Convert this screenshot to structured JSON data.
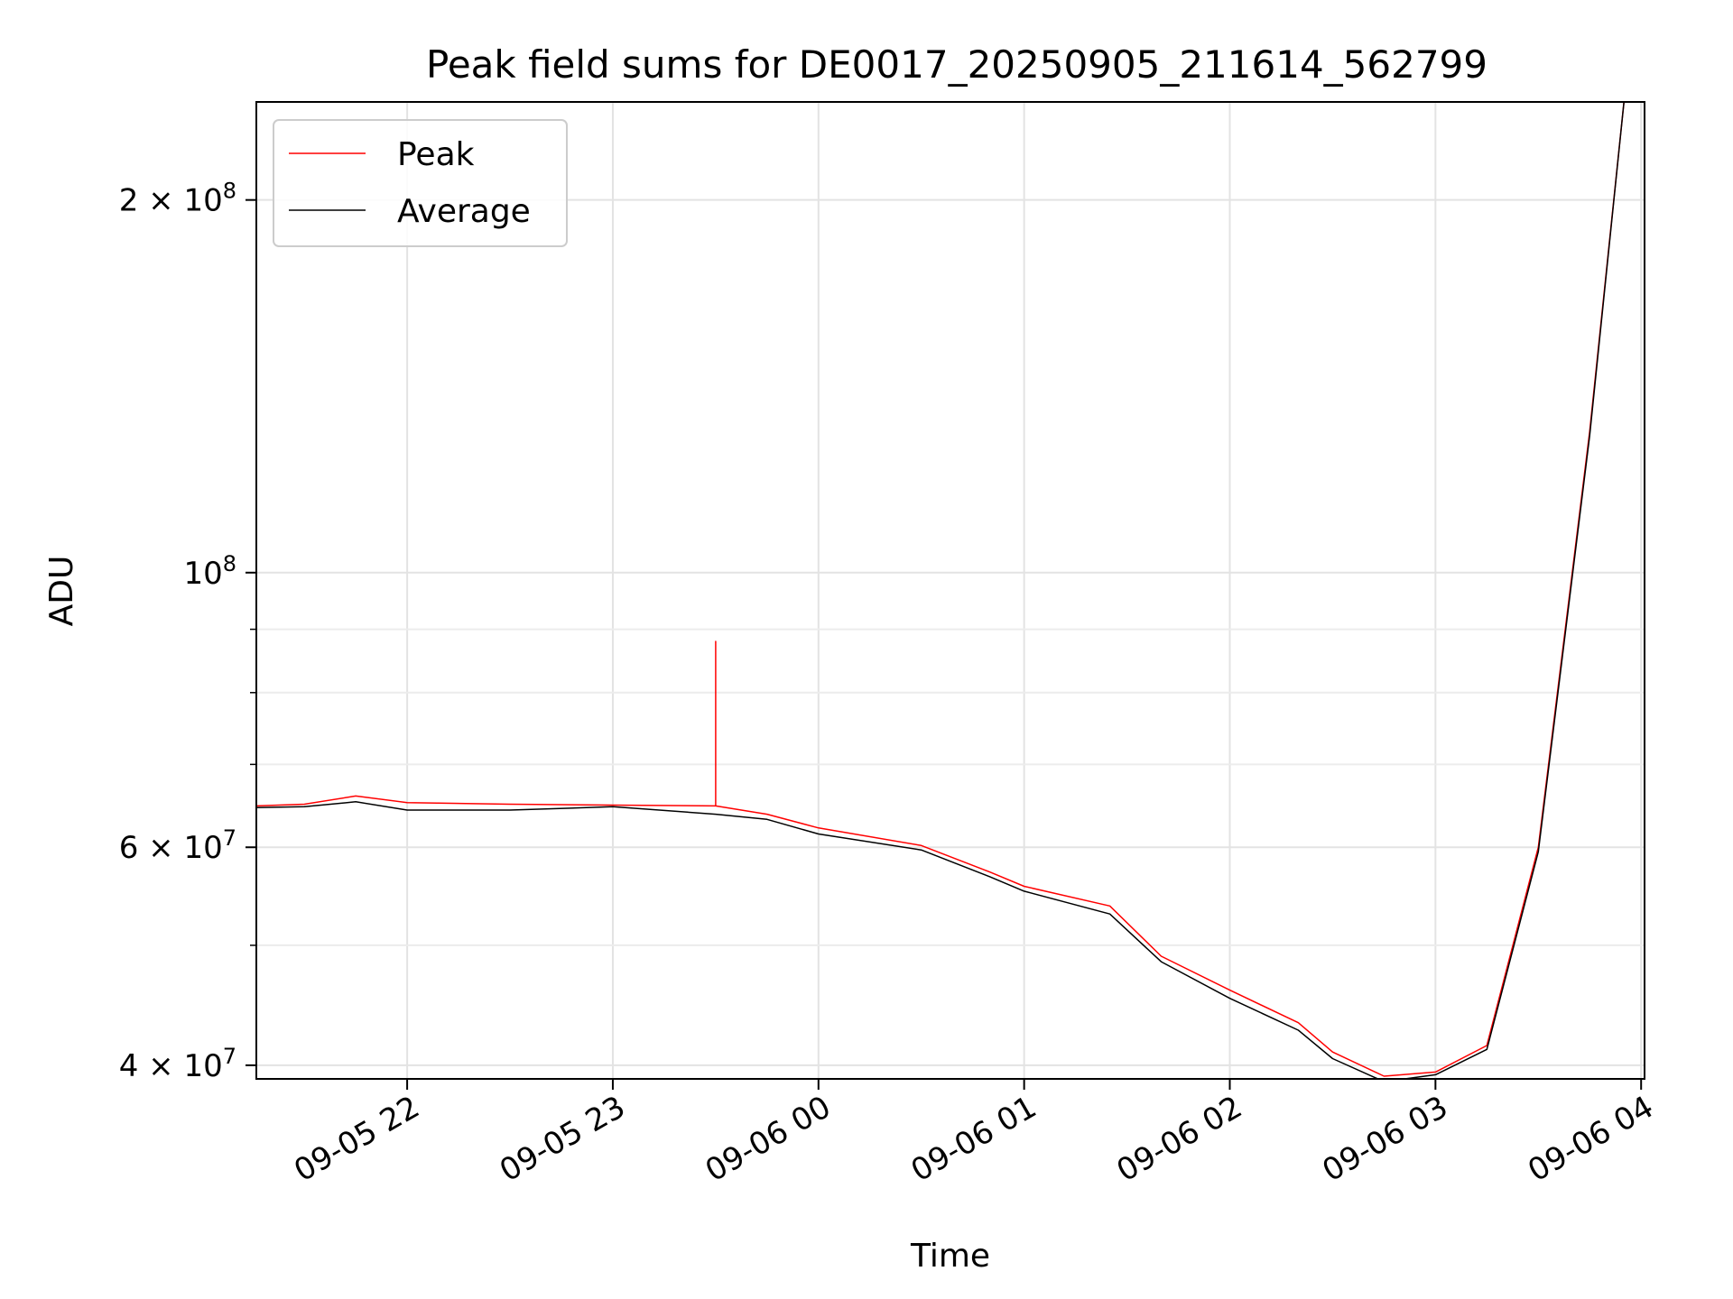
{
  "chart_data": {
    "type": "line",
    "title": "Peak field sums for DE0017_20250905_211614_562799",
    "xlabel": "Time",
    "ylabel": "ADU",
    "x_scale": "time",
    "y_scale": "log",
    "xlim": [
      "2025-09-05 21:16",
      "2025-09-06 04:01"
    ],
    "ylim": [
      39000000,
      240000000
    ],
    "grid": true,
    "legend_position": "top-left",
    "x_ticks": [
      {
        "value": "2025-09-05 22:00",
        "label": "09-05 22"
      },
      {
        "value": "2025-09-05 23:00",
        "label": "09-05 23"
      },
      {
        "value": "2025-09-06 00:00",
        "label": "09-06 00"
      },
      {
        "value": "2025-09-06 01:00",
        "label": "09-06 01"
      },
      {
        "value": "2025-09-06 02:00",
        "label": "09-06 02"
      },
      {
        "value": "2025-09-06 03:00",
        "label": "09-06 03"
      },
      {
        "value": "2025-09-06 04:00",
        "label": "09-06 04"
      }
    ],
    "y_major_ticks": [
      {
        "value": 40000000,
        "mantissa": "4 × 10",
        "exp": "7"
      },
      {
        "value": 60000000,
        "mantissa": "6 × 10",
        "exp": "7"
      },
      {
        "value": 100000000,
        "mantissa": "10",
        "exp": "8"
      },
      {
        "value": 200000000,
        "mantissa": "2 × 10",
        "exp": "8"
      }
    ],
    "y_minor_ticks": [
      50000000,
      70000000,
      80000000,
      90000000
    ],
    "series": [
      {
        "name": "Peak",
        "color": "#ff0000",
        "points": [
          [
            "2025-09-05 21:16",
            64800000
          ],
          [
            "2025-09-05 21:30",
            65000000
          ],
          [
            "2025-09-05 21:45",
            66000000
          ],
          [
            "2025-09-05 22:00",
            65200000
          ],
          [
            "2025-09-05 22:30",
            65000000
          ],
          [
            "2025-09-05 23:00",
            64900000
          ],
          [
            "2025-09-05 23:30",
            64800000
          ],
          [
            "2025-09-05 23:30",
            88000000
          ],
          [
            "2025-09-05 23:30",
            64800000
          ],
          [
            "2025-09-05 23:45",
            63800000
          ],
          [
            "2025-09-06 00:00",
            62200000
          ],
          [
            "2025-09-06 00:30",
            60200000
          ],
          [
            "2025-09-06 00:50",
            57300000
          ],
          [
            "2025-09-06 01:00",
            55800000
          ],
          [
            "2025-09-06 01:25",
            53800000
          ],
          [
            "2025-09-06 01:40",
            49000000
          ],
          [
            "2025-09-06 02:00",
            46000000
          ],
          [
            "2025-09-06 02:20",
            43300000
          ],
          [
            "2025-09-06 02:30",
            41000000
          ],
          [
            "2025-09-06 02:45",
            39200000
          ],
          [
            "2025-09-06 03:00",
            39500000
          ],
          [
            "2025-09-06 03:15",
            41500000
          ],
          [
            "2025-09-06 03:30",
            60000000
          ],
          [
            "2025-09-06 03:45",
            130000000
          ],
          [
            "2025-09-06 03:55",
            240000000
          ]
        ]
      },
      {
        "name": "Average",
        "color": "#000000",
        "points": [
          [
            "2025-09-05 21:16",
            64600000
          ],
          [
            "2025-09-05 21:30",
            64700000
          ],
          [
            "2025-09-05 21:45",
            65300000
          ],
          [
            "2025-09-05 22:00",
            64300000
          ],
          [
            "2025-09-05 22:30",
            64300000
          ],
          [
            "2025-09-05 23:00",
            64700000
          ],
          [
            "2025-09-05 23:30",
            63800000
          ],
          [
            "2025-09-05 23:45",
            63200000
          ],
          [
            "2025-09-06 00:00",
            61500000
          ],
          [
            "2025-09-06 00:30",
            59700000
          ],
          [
            "2025-09-06 00:50",
            56800000
          ],
          [
            "2025-09-06 01:00",
            55300000
          ],
          [
            "2025-09-06 01:25",
            53000000
          ],
          [
            "2025-09-06 01:40",
            48500000
          ],
          [
            "2025-09-06 02:00",
            45300000
          ],
          [
            "2025-09-06 02:20",
            42700000
          ],
          [
            "2025-09-06 02:30",
            40500000
          ],
          [
            "2025-09-06 02:45",
            38800000
          ],
          [
            "2025-09-06 03:00",
            39300000
          ],
          [
            "2025-09-06 03:15",
            41200000
          ],
          [
            "2025-09-06 03:30",
            59500000
          ],
          [
            "2025-09-06 03:45",
            129000000
          ],
          [
            "2025-09-06 03:55",
            240000000
          ]
        ]
      }
    ]
  }
}
